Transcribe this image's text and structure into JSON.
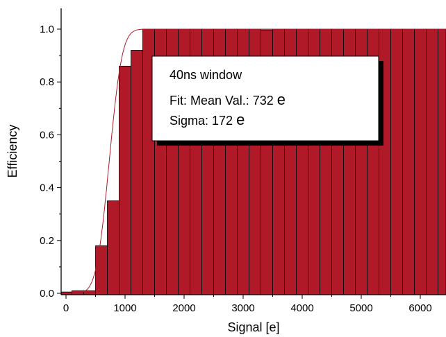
{
  "chart_data": {
    "type": "bar",
    "title": "",
    "xlabel": "Signal [e]",
    "ylabel": "Efficiency",
    "xlim": [
      -50,
      6450
    ],
    "ylim": [
      0,
      1.08
    ],
    "x_ticks": [
      0,
      1000,
      2000,
      3000,
      4000,
      5000,
      6000
    ],
    "y_ticks": [
      0.0,
      0.2,
      0.4,
      0.6,
      0.8,
      1.0
    ],
    "y_tick_labels": [
      "0.0",
      "0.2",
      "0.4",
      "0.6",
      "0.8",
      "1.0"
    ],
    "bin_width": 200,
    "bin_starts": [
      -100,
      100,
      300,
      500,
      700,
      900,
      1100,
      1300,
      1500,
      1700,
      1900,
      2100,
      2300,
      2500,
      2700,
      2900,
      3100,
      3300,
      3500,
      3700,
      3900,
      4100,
      4300,
      4500,
      4700,
      4900,
      5100,
      5300,
      5500,
      5700,
      5900,
      6100,
      6300
    ],
    "values": [
      0.005,
      0.01,
      0.01,
      0.18,
      0.35,
      0.86,
      0.92,
      1.0,
      1.0,
      1.0,
      1.0,
      1.0,
      1.0,
      1.0,
      1.0,
      1.0,
      1.0,
      0.997,
      1.0,
      1.0,
      1.0,
      1.0,
      1.0,
      1.0,
      1.0,
      1.0,
      1.0,
      1.0,
      1.0,
      1.0,
      1.0,
      1.0,
      1.0
    ],
    "fit": {
      "mean": 732,
      "sigma": 172
    },
    "bar_color": "#b01a28",
    "fit_color": "#b01a28",
    "grid": false,
    "legend_position": "top-center",
    "annotation": {
      "line1": "40ns window",
      "line2_prefix": "Fit: Mean Val.:  732 ",
      "line3_prefix": "Sigma:  172 ",
      "unit": "e"
    }
  }
}
